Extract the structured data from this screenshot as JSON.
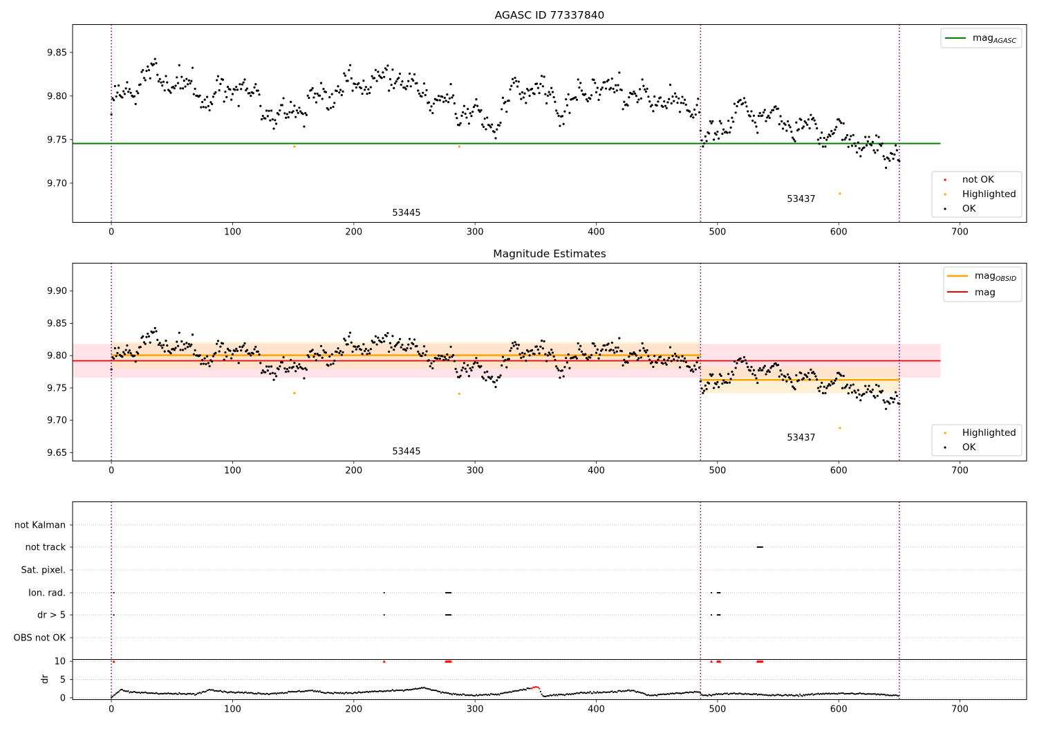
{
  "figure": {
    "panel1_title": "AGASC ID 77337840",
    "panel2_title": "Magnitude Estimates"
  },
  "colors": {
    "ok": "#000000",
    "highlighted": "#ffa500",
    "not_ok": "#ff0000",
    "mag_agasc": "#008000",
    "mag_obsid": "#ffa500",
    "mag": "#ff0000",
    "obs_boundary": "#800080",
    "band_mag": "#ffc0cb",
    "band_obsid": "#ffe4b5"
  },
  "chart_data": [
    {
      "type": "scatter",
      "title": "AGASC ID 77337840",
      "xlim": [
        -32,
        755
      ],
      "ylim": [
        9.655,
        9.882
      ],
      "xticks": [
        0,
        100,
        200,
        300,
        400,
        500,
        600,
        700
      ],
      "yticks": [
        9.7,
        9.75,
        9.8,
        9.85
      ],
      "ytick_labels": [
        "9.70",
        "9.75",
        "9.80",
        "9.85"
      ],
      "observation_boundaries": [
        0,
        486,
        650
      ],
      "observation_labels": [
        {
          "text": "53445",
          "x": 243,
          "y": 9.666
        },
        {
          "text": "53437",
          "x": 568,
          "y": 9.682
        }
      ],
      "lines": [
        {
          "name": "mag",
          "name_sub": "AGASC",
          "y": 9.7455,
          "x": [
            -32,
            684
          ],
          "color": "#008000"
        }
      ],
      "highlighted_points": [
        {
          "x": 151,
          "y": 9.742
        },
        {
          "x": 287,
          "y": 9.742
        },
        {
          "x": 601,
          "y": 9.688
        }
      ],
      "legend_lines": [
        {
          "name": "mag",
          "name_sub": "AGASC",
          "color": "#008000"
        }
      ],
      "legend_points": [
        {
          "name": "not OK",
          "color": "#ff0000"
        },
        {
          "name": "Highlighted",
          "color": "#ffa500"
        },
        {
          "name": "OK",
          "color": "#000000"
        }
      ],
      "ok_series_trend": [
        [
          0,
          9.787
        ],
        [
          30,
          9.828
        ],
        [
          60,
          9.812
        ],
        [
          80,
          9.795
        ],
        [
          100,
          9.812
        ],
        [
          120,
          9.8
        ],
        [
          135,
          9.772
        ],
        [
          160,
          9.793
        ],
        [
          190,
          9.81
        ],
        [
          210,
          9.818
        ],
        [
          235,
          9.822
        ],
        [
          270,
          9.795
        ],
        [
          300,
          9.78
        ],
        [
          312,
          9.76
        ],
        [
          330,
          9.798
        ],
        [
          350,
          9.812
        ],
        [
          370,
          9.785
        ],
        [
          400,
          9.812
        ],
        [
          440,
          9.798
        ],
        [
          470,
          9.79
        ],
        [
          485,
          9.788
        ],
        [
          487,
          9.745
        ],
        [
          520,
          9.785
        ],
        [
          560,
          9.77
        ],
        [
          600,
          9.755
        ],
        [
          625,
          9.74
        ],
        [
          640,
          9.74
        ],
        [
          650,
          9.735
        ]
      ]
    },
    {
      "type": "scatter",
      "title": "Magnitude Estimates",
      "xlim": [
        -32,
        755
      ],
      "ylim": [
        9.637,
        9.943
      ],
      "xticks": [
        0,
        100,
        200,
        300,
        400,
        500,
        600,
        700
      ],
      "yticks": [
        9.65,
        9.7,
        9.75,
        9.8,
        9.85,
        9.9
      ],
      "ytick_labels": [
        "9.65",
        "9.70",
        "9.75",
        "9.80",
        "9.85",
        "9.90"
      ],
      "observation_boundaries": [
        0,
        486,
        650
      ],
      "observation_labels": [
        {
          "text": "53445",
          "x": 243,
          "y": 9.648
        },
        {
          "text": "53437",
          "x": 568,
          "y": 9.67
        }
      ],
      "lines": [
        {
          "name": "mag",
          "name_sub": "OBSID",
          "y": 9.8005,
          "x": [
            0,
            486
          ],
          "color": "#ffa500"
        },
        {
          "name": "mag",
          "name_sub": "OBSID",
          "y": 9.7625,
          "x": [
            486,
            650
          ],
          "color": "#ffa500"
        },
        {
          "name": "mag",
          "name_sub": "",
          "y": 9.792,
          "x": [
            -32,
            684
          ],
          "color": "#ff0000"
        }
      ],
      "bands": [
        {
          "x": [
            -32,
            684
          ],
          "y": [
            9.766,
            9.818
          ],
          "color": "#ffc0cb"
        },
        {
          "x": [
            0,
            486
          ],
          "y": [
            9.78,
            9.821
          ],
          "color": "#ffe4b5"
        },
        {
          "x": [
            486,
            650
          ],
          "y": [
            9.742,
            9.783
          ],
          "color": "#ffe4b5"
        }
      ],
      "highlighted_points": [
        {
          "x": 151,
          "y": 9.742
        },
        {
          "x": 287,
          "y": 9.741
        },
        {
          "x": 601,
          "y": 9.688
        }
      ],
      "legend_lines": [
        {
          "name": "mag",
          "name_sub": "OBSID",
          "color": "#ffa500"
        },
        {
          "name": "mag",
          "name_sub": "",
          "color": "#ff0000"
        }
      ],
      "legend_points": [
        {
          "name": "Highlighted",
          "color": "#ffa500"
        },
        {
          "name": "OK",
          "color": "#000000"
        }
      ]
    },
    {
      "type": "scatter",
      "title": "",
      "xlim": [
        -32,
        755
      ],
      "xticks": [
        0,
        100,
        200,
        300,
        400,
        500,
        600,
        700
      ],
      "observation_boundaries": [
        0,
        486,
        650
      ],
      "flag_categories": [
        "not Kalman",
        "not track",
        "Sat. pixel.",
        "Ion. rad.",
        "dr > 5",
        "OBS not OK"
      ],
      "flag_points": {
        "not track": [
          533,
          534,
          535,
          536,
          537
        ],
        "Ion. rad.": [
          2,
          225,
          276,
          277,
          278,
          279,
          280,
          495,
          500,
          501,
          502
        ],
        "dr > 5": [
          2,
          225,
          276,
          277,
          278,
          279,
          280,
          495,
          500,
          501,
          502
        ]
      },
      "dr_ylabel": "dr",
      "dr_ylim": [
        -0.5,
        10.5
      ],
      "dr_yticks": [
        0,
        5,
        10
      ],
      "dr_ytick_labels": [
        "0",
        "5",
        "10"
      ],
      "dr_outliers_clipped": [
        2,
        225,
        276,
        277,
        278,
        279,
        280,
        495,
        500,
        501,
        502,
        533,
        534,
        535,
        536,
        537
      ],
      "dr_trend": [
        [
          0,
          0.1
        ],
        [
          8,
          2.3
        ],
        [
          15,
          1.5
        ],
        [
          25,
          1.4
        ],
        [
          50,
          1.1
        ],
        [
          70,
          1.0
        ],
        [
          82,
          2.3
        ],
        [
          95,
          1.6
        ],
        [
          130,
          1.1
        ],
        [
          165,
          2.0
        ],
        [
          175,
          1.4
        ],
        [
          200,
          1.3
        ],
        [
          215,
          1.7
        ],
        [
          240,
          2.0
        ],
        [
          258,
          2.7
        ],
        [
          270,
          1.7
        ],
        [
          280,
          1.0
        ],
        [
          300,
          0.7
        ],
        [
          320,
          1.0
        ],
        [
          352,
          3.0
        ],
        [
          356,
          0.4
        ],
        [
          390,
          1.4
        ],
        [
          405,
          1.5
        ],
        [
          430,
          2.0
        ],
        [
          445,
          0.6
        ],
        [
          460,
          1.1
        ],
        [
          485,
          1.6
        ],
        [
          488,
          0.6
        ],
        [
          510,
          1.2
        ],
        [
          525,
          1.1
        ],
        [
          540,
          0.7
        ],
        [
          570,
          0.7
        ],
        [
          590,
          1.2
        ],
        [
          620,
          1.1
        ],
        [
          640,
          0.8
        ],
        [
          650,
          0.6
        ]
      ]
    }
  ]
}
